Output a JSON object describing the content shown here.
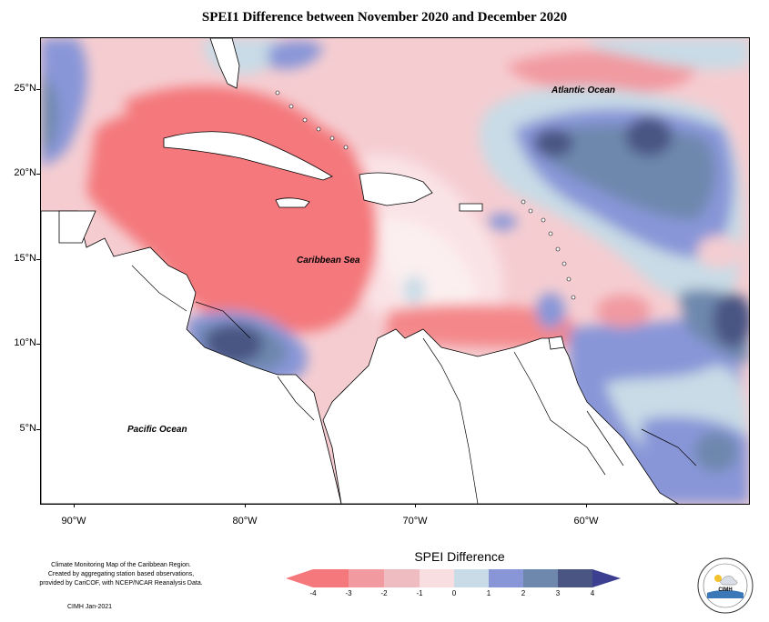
{
  "title": "SPEI1 Difference between November 2020 and December 2020",
  "lat_ticks": [
    "25°N",
    "20°N",
    "15°N",
    "10°N",
    "5°N"
  ],
  "lon_ticks": [
    "90°W",
    "80°W",
    "70°W",
    "60°W"
  ],
  "ocean_labels": {
    "atlantic": "Atlantic Ocean",
    "caribbean": "Caribbean Sea",
    "pacific": "Pacific Ocean"
  },
  "credit": {
    "line1": "Climate Monitoring Map of the Caribbean Region.",
    "line2": "Created by aggregating station based observations,",
    "line3": "provided by CariCOF, with NCEP/NCAR Reanalysis Data.",
    "date": "CIMH Jan-2021"
  },
  "legend": {
    "title": "SPEI Difference",
    "labels": [
      "-4",
      "-3",
      "-2",
      "-1",
      "0",
      "1",
      "2",
      "3",
      "4"
    ],
    "colors": [
      "#f4787c",
      "#f19aa0",
      "#efbcc1",
      "#f8dde1",
      "#fbeff0",
      "#c8dbe6",
      "#8896d8",
      "#6e88ad",
      "#4a5583",
      "#3c3f8f"
    ]
  },
  "logo": {
    "name": "cimh-logo-icon",
    "text": "CIMH"
  }
}
